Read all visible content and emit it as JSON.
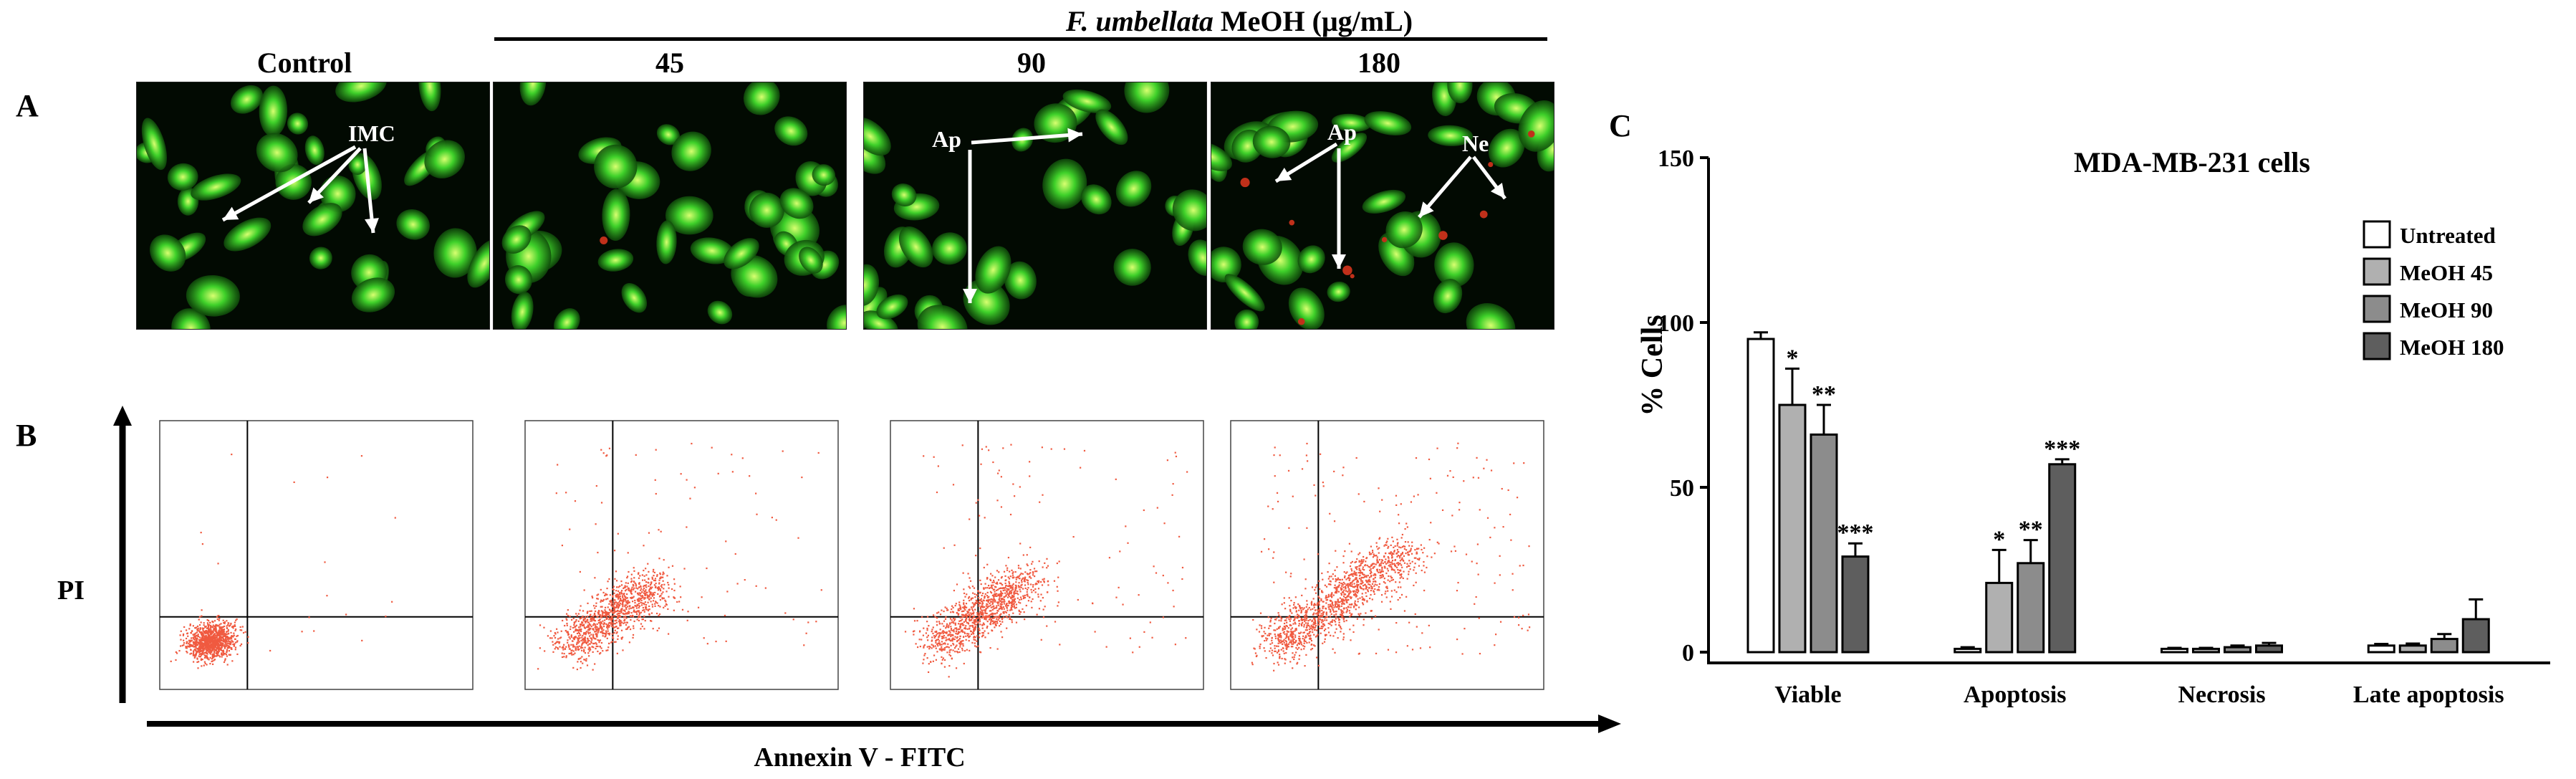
{
  "panel_a": {
    "letter": "A",
    "group_label_italic": "F. umbellata",
    "group_label_rest": " MeOH (μg/mL)",
    "columns": [
      "Control",
      "45",
      "90",
      "180"
    ],
    "annotations": {
      "control": "IMC",
      "dose_90": "Ap",
      "dose_180_ap": "Ap",
      "dose_180_ne": "Ne"
    },
    "colors": {
      "viable_cells": "#3fd12a",
      "background": "#020a02",
      "necrotic_cells": "#c0301a"
    }
  },
  "panel_b": {
    "letter": "B",
    "y_axis_label": "PI",
    "x_axis_label": "Annexin V - FITC",
    "dot_color": "#f05a40"
  },
  "panel_c": {
    "letter": "C"
  },
  "chart_data": {
    "type": "bar",
    "title": "MDA-MB-231 cells",
    "xlabel": "",
    "ylabel": "% Cells",
    "ylim": [
      0,
      150
    ],
    "yticks": [
      0,
      50,
      100,
      150
    ],
    "categories": [
      "Viable",
      "Apoptosis",
      "Necrosis",
      "Late apoptosis"
    ],
    "legend_position": "top-right",
    "series": [
      {
        "name": "Untreated",
        "color": "#ffffff",
        "values": [
          95,
          1,
          1,
          2
        ],
        "errors": [
          2,
          0.5,
          0.3,
          0.5
        ],
        "significance": [
          "",
          "",
          "",
          ""
        ]
      },
      {
        "name": "MeOH 45",
        "color": "#b0b0b0",
        "values": [
          75,
          21,
          1,
          2
        ],
        "errors": [
          11,
          10,
          0.3,
          0.6
        ],
        "significance": [
          "*",
          "*",
          "",
          ""
        ]
      },
      {
        "name": "MeOH 90",
        "color": "#8c8c8c",
        "values": [
          66,
          27,
          1.5,
          4
        ],
        "errors": [
          9,
          7,
          0.5,
          1.5
        ],
        "significance": [
          "**",
          "**",
          "",
          ""
        ]
      },
      {
        "name": "MeOH 180",
        "color": "#5e5e5e",
        "values": [
          29,
          57,
          2,
          10
        ],
        "errors": [
          4,
          1.5,
          0.8,
          6
        ],
        "significance": [
          "***",
          "***",
          "",
          ""
        ]
      }
    ]
  }
}
